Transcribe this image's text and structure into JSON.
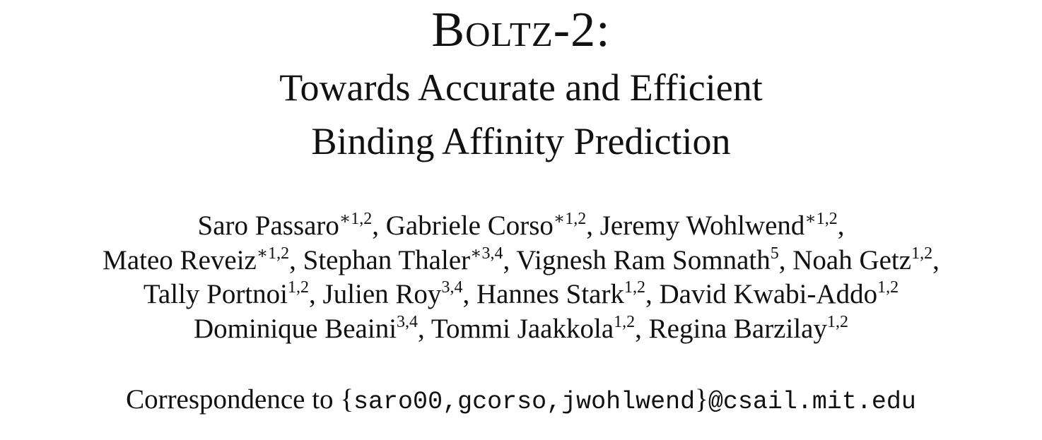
{
  "title": {
    "name": "Boltz-2:"
  },
  "subtitle": {
    "line1": "Towards Accurate and Efficient",
    "line2": "Binding Affinity Prediction"
  },
  "author_lines": [
    [
      {
        "name": "Saro Passaro",
        "sup": "∗1,2",
        "sep": ", "
      },
      {
        "name": "Gabriele Corso",
        "sup": "∗1,2",
        "sep": ", "
      },
      {
        "name": "Jeremy Wohlwend",
        "sup": "∗1,2",
        "sep": ","
      }
    ],
    [
      {
        "name": "Mateo Reveiz",
        "sup": "∗1,2",
        "sep": ", "
      },
      {
        "name": "Stephan Thaler",
        "sup": "∗3,4",
        "sep": ", "
      },
      {
        "name": "Vignesh Ram Somnath",
        "sup": "5",
        "sep": ", "
      },
      {
        "name": "Noah Getz",
        "sup": "1,2",
        "sep": ","
      }
    ],
    [
      {
        "name": "Tally Portnoi",
        "sup": "1,2",
        "sep": ", "
      },
      {
        "name": "Julien Roy",
        "sup": "3,4",
        "sep": ", "
      },
      {
        "name": "Hannes Stark",
        "sup": "1,2",
        "sep": ", "
      },
      {
        "name": "David Kwabi-Addo",
        "sup": "1,2",
        "sep": ""
      }
    ],
    [
      {
        "name": "Dominique Beaini",
        "sup": "3,4",
        "sep": ", "
      },
      {
        "name": "Tommi Jaakkola",
        "sup": "1,2",
        "sep": ", "
      },
      {
        "name": "Regina Barzilay",
        "sup": "1,2",
        "sep": ""
      }
    ]
  ],
  "correspondence": {
    "prefix": "Correspondence to ",
    "open_brace": "{",
    "emails": "saro00,gcorso,jwohlwend",
    "close_brace": "}",
    "domain": "@csail.mit.edu"
  }
}
